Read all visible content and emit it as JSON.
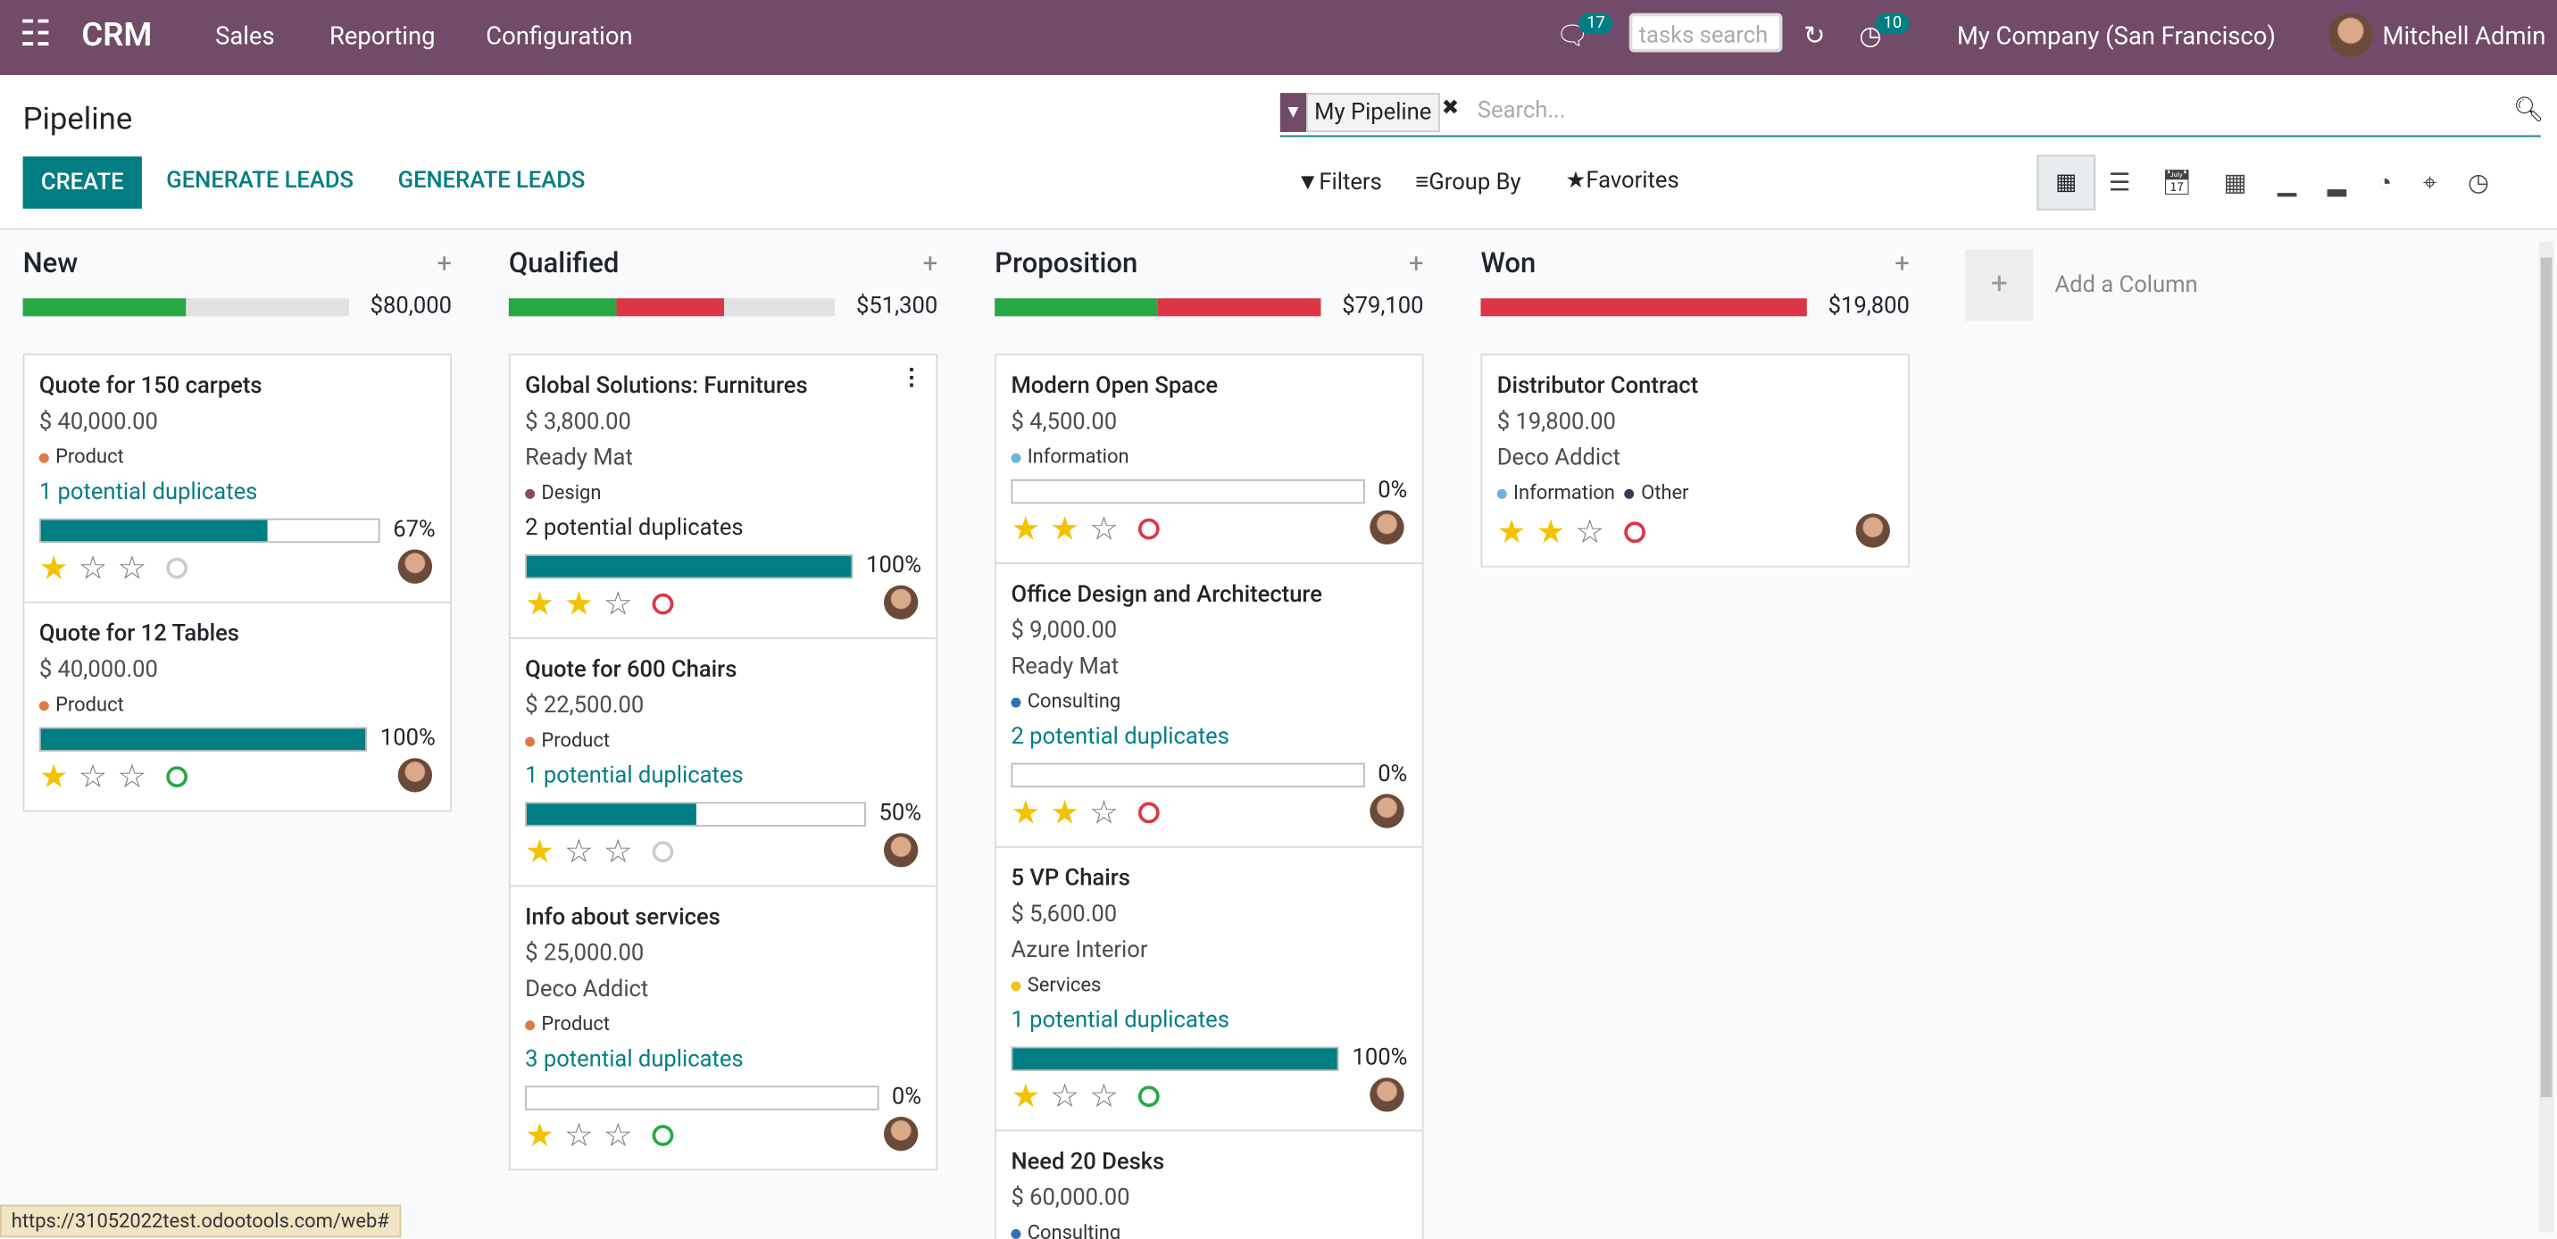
{
  "navbar": {
    "app": "CRM",
    "menus": [
      "Sales",
      "Reporting",
      "Configuration"
    ],
    "messages_count": 17,
    "search_placeholder": "tasks search",
    "activities_count": 10,
    "company": "My Company (San Francisco)",
    "user": "Mitchell Admin"
  },
  "control_panel": {
    "title": "Pipeline",
    "buttons": [
      "CREATE",
      "GENERATE LEADS",
      "GENERATE LEADS"
    ],
    "facet": "My Pipeline",
    "search_placeholder": "Search...",
    "filters": "Filters",
    "group_by": "Group By",
    "favorites": "Favorites"
  },
  "columns": [
    {
      "name": "New",
      "total": "$80,000",
      "cards": [
        {
          "title": "Quote for 150 carpets",
          "revenue": "$ 40,000.00",
          "tags": [
            "Product"
          ],
          "duplicates": "1 potential duplicates",
          "probability": "67%"
        },
        {
          "title": "Quote for 12 Tables",
          "revenue": "$ 40,000.00",
          "tags": [
            "Product"
          ],
          "probability": "100%"
        }
      ]
    },
    {
      "name": "Qualified",
      "total": "$51,300",
      "cards": [
        {
          "title": "Global Solutions: Furnitures",
          "revenue": "$ 3,800.00",
          "company": "Ready Mat",
          "tags": [
            "Design"
          ],
          "duplicates": "2 potential duplicates",
          "probability": "100%"
        },
        {
          "title": "Quote for 600 Chairs",
          "revenue": "$ 22,500.00",
          "tags": [
            "Product"
          ],
          "duplicates": "1 potential duplicates",
          "probability": "50%"
        },
        {
          "title": "Info about services",
          "revenue": "$ 25,000.00",
          "company": "Deco Addict",
          "tags": [
            "Product"
          ],
          "duplicates": "3 potential duplicates",
          "probability": "0%"
        }
      ]
    },
    {
      "name": "Proposition",
      "total": "$79,100",
      "cards": [
        {
          "title": "Modern Open Space",
          "revenue": "$ 4,500.00",
          "tags": [
            "Information"
          ],
          "probability": "0%"
        },
        {
          "title": "Office Design and Architecture",
          "revenue": "$ 9,000.00",
          "company": "Ready Mat",
          "tags": [
            "Consulting"
          ],
          "duplicates": "2 potential duplicates",
          "probability": "0%"
        },
        {
          "title": "5 VP Chairs",
          "revenue": "$ 5,600.00",
          "company": "Azure Interior",
          "tags": [
            "Services"
          ],
          "duplicates": "1 potential duplicates",
          "probability": "100%"
        },
        {
          "title": "Need 20 Desks",
          "revenue": "$ 60,000.00",
          "tags": [
            "Consulting"
          ]
        }
      ]
    },
    {
      "name": "Won",
      "total": "$19,800",
      "cards": [
        {
          "title": "Distributor Contract",
          "revenue": "$ 19,800.00",
          "company": "Deco Addict",
          "tags": [
            "Information",
            "Other"
          ]
        }
      ]
    }
  ],
  "add_column": "Add a Column",
  "status_url": "https://31052022test.odootools.com/web#"
}
